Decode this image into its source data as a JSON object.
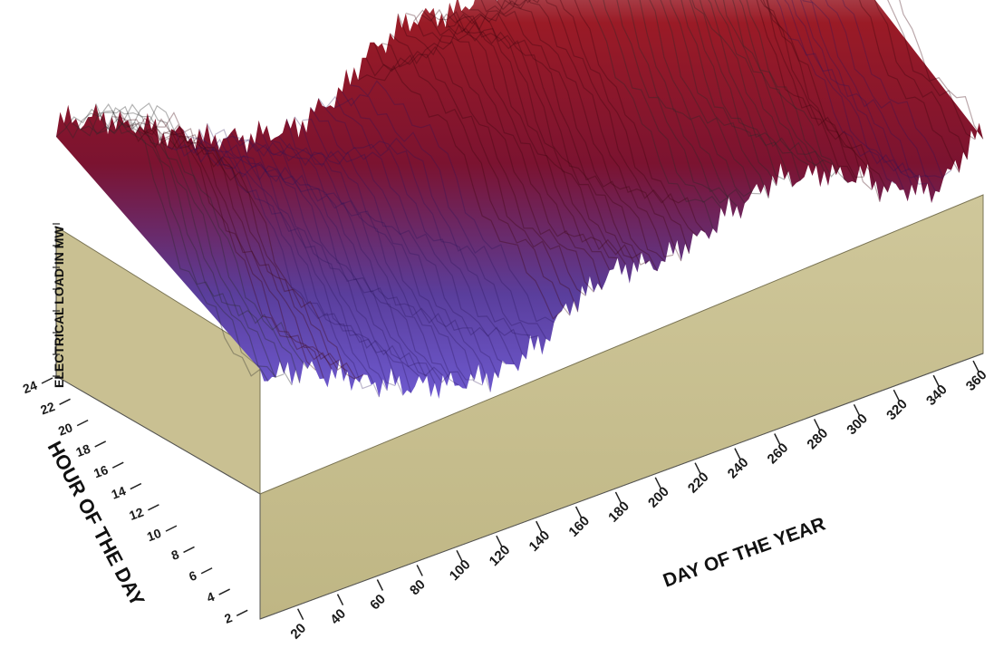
{
  "chart_data": {
    "type": "surface-3d",
    "xlabel": "DAY OF THE YEAR",
    "ylabel": "HOUR OF THE DAY",
    "zlabel": "ELECTRICAL LOAD IN MW",
    "x_ticks": [
      "20",
      "40",
      "60",
      "80",
      "100",
      "120",
      "140",
      "160",
      "180",
      "200",
      "220",
      "240",
      "260",
      "280",
      "300",
      "320",
      "340",
      "360"
    ],
    "y_ticks": [
      "2",
      "4",
      "6",
      "8",
      "10",
      "12",
      "14",
      "16",
      "18",
      "20",
      "22",
      "24"
    ],
    "xlim": [
      1,
      365
    ],
    "ylim": [
      1,
      24
    ],
    "surface_profile": {
      "description_days": [
        1,
        20,
        40,
        60,
        80,
        100,
        120,
        140,
        160,
        180,
        200,
        220,
        240,
        260,
        280,
        300,
        320,
        340,
        365
      ],
      "relative_load": [
        0.7,
        0.63,
        0.5,
        0.38,
        0.3,
        0.25,
        0.22,
        0.28,
        0.45,
        0.52,
        0.48,
        0.55,
        0.68,
        0.78,
        0.72,
        0.6,
        0.4,
        0.3,
        0.55
      ]
    },
    "colors": {
      "low": "#6a55c8",
      "mid": "#8c0f1e",
      "high": "#dcdcdc",
      "base": "#c7bf8e"
    }
  }
}
